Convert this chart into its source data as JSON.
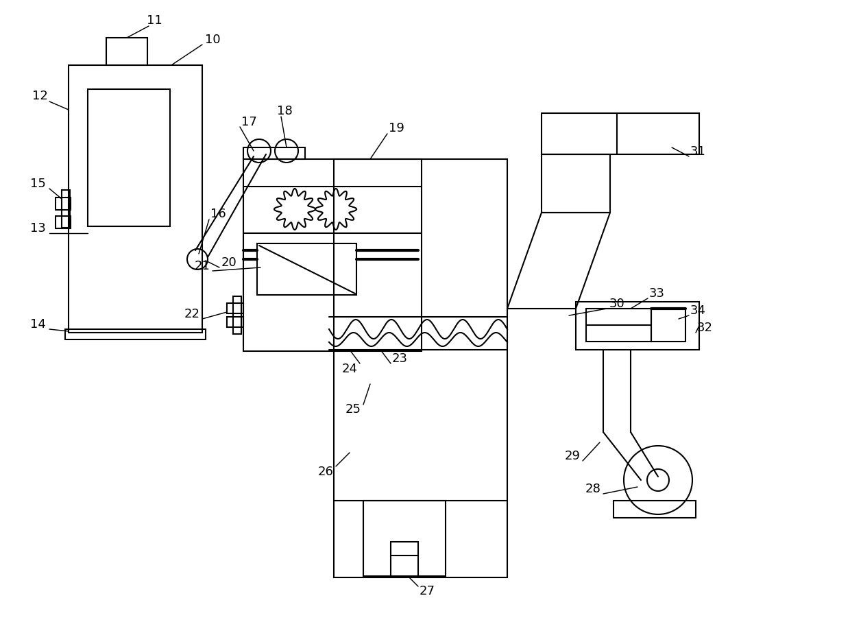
{
  "bg_color": "#ffffff",
  "line_color": "#000000",
  "lw": 1.5,
  "lw_thin": 1.0,
  "fs": 13
}
